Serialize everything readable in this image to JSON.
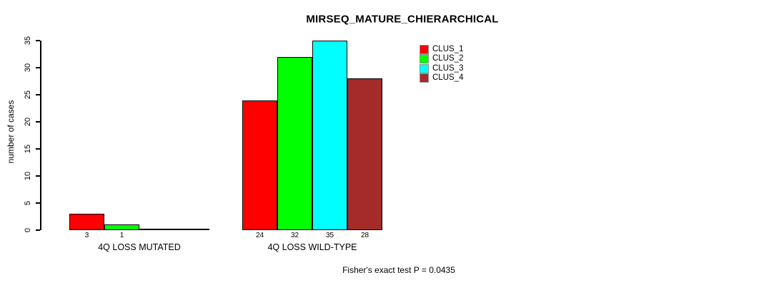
{
  "chart_data": {
    "type": "bar",
    "title": "MIRSEQ_MATURE_CHIERARCHICAL",
    "ylabel": "number of cases",
    "xlabel": "",
    "ylim": [
      0,
      35
    ],
    "yticks": [
      0,
      5,
      10,
      15,
      20,
      25,
      30,
      35
    ],
    "categories": [
      "4Q LOSS MUTATED",
      "4Q LOSS WILD-TYPE"
    ],
    "series": [
      {
        "name": "CLUS_1",
        "color": "#FF0000",
        "values": [
          3,
          24
        ]
      },
      {
        "name": "CLUS_2",
        "color": "#00FF00",
        "values": [
          1,
          32
        ]
      },
      {
        "name": "CLUS_3",
        "color": "#00FFFF",
        "values": [
          0,
          35
        ]
      },
      {
        "name": "CLUS_4",
        "color": "#A52A2A",
        "values": [
          0,
          28
        ]
      }
    ],
    "bar_labels_shown": [
      [
        "3",
        "1",
        "",
        ""
      ],
      [
        "24",
        "32",
        "35",
        "28"
      ]
    ],
    "legend_position": "top-right",
    "grid": false,
    "annotation": "Fisher's exact test P = 0.0435"
  }
}
